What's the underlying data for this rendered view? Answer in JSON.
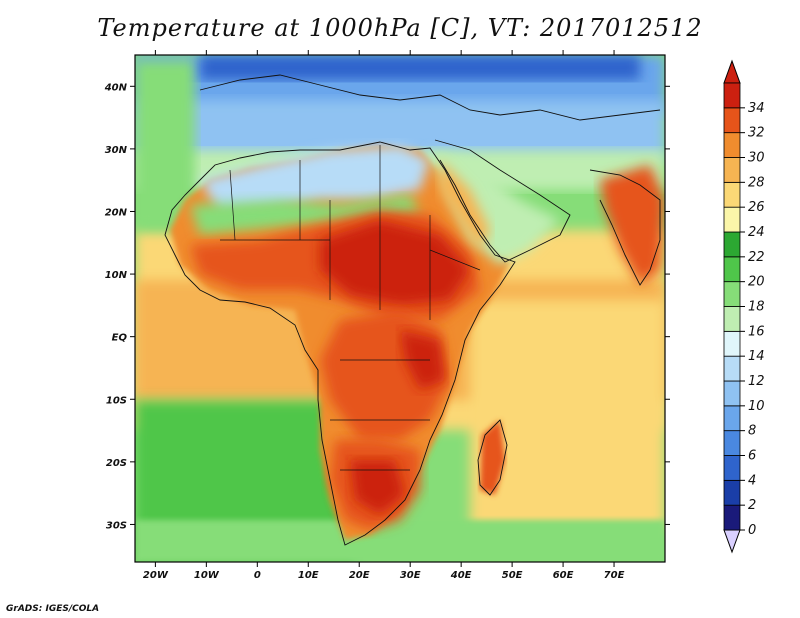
{
  "title": "Temperature at 1000hPa [C], VT: 2017012512",
  "footer": "GrADS: IGES/COLA",
  "map": {
    "lon_range": [
      -24,
      80
    ],
    "lat_range": [
      -36,
      45
    ],
    "lat_ticks": [
      "40N",
      "30N",
      "20N",
      "10N",
      "EQ",
      "10S",
      "20S",
      "30S"
    ],
    "lat_values": [
      40,
      30,
      20,
      10,
      0,
      -10,
      -20,
      -30
    ],
    "lon_ticks": [
      "20W",
      "10W",
      "0",
      "10E",
      "20E",
      "30E",
      "40E",
      "50E",
      "60E",
      "70E"
    ],
    "lon_values": [
      -20,
      -10,
      0,
      10,
      20,
      30,
      40,
      50,
      60,
      70
    ]
  },
  "colorbar": {
    "labels": [
      "0",
      "2",
      "4",
      "6",
      "8",
      "10",
      "12",
      "14",
      "16",
      "18",
      "20",
      "22",
      "24",
      "26",
      "28",
      "30",
      "32",
      "34"
    ],
    "colors": [
      "#1a1a7a",
      "#1a3ea8",
      "#2f64cc",
      "#4a88e0",
      "#6aa6ec",
      "#8fc2f2",
      "#b7dcf7",
      "#e0f6fb",
      "#bfeeb2",
      "#86dd78",
      "#4fc64a",
      "#2ca832",
      "#fbf6a9",
      "#fbd876",
      "#f6b452",
      "#f08c2e",
      "#e6541a",
      "#cc2010"
    ],
    "under_color": "#d9d0ff",
    "over_color": "#cc2010"
  },
  "colors": {
    "ocean_south": "#4fc64a",
    "ocean_tropical": "#fbd876",
    "sahara": "#b7dcf7",
    "sahel_hot": "#e6541a",
    "core_hot": "#cc2010"
  }
}
